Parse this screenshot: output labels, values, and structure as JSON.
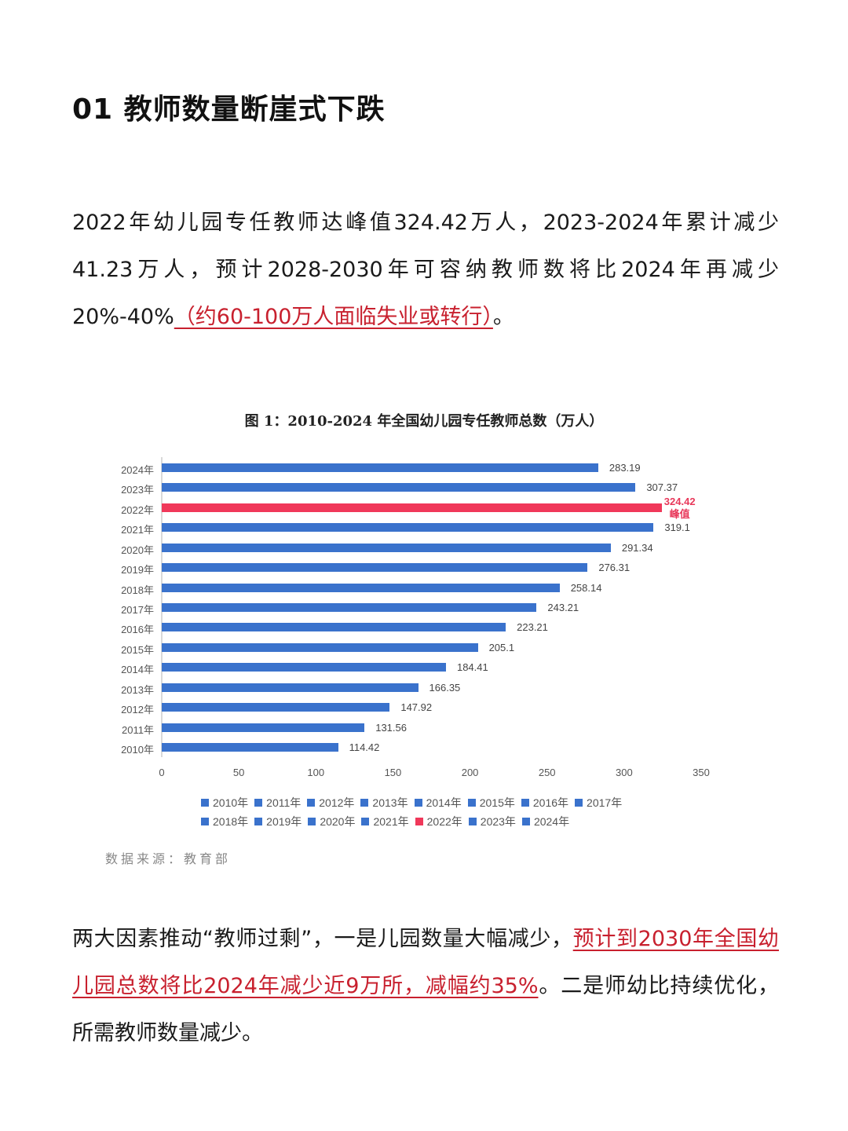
{
  "heading": "01 教师数量断崖式下跌",
  "paragraph1": {
    "text": "2022年幼儿园专任教师达峰值324.42万人，2023-2024年累计减少41.23万人，预计2028-2030年可容纳教师数将比2024年再减少20%-40%",
    "highlight": "（约60-100万人面临失业或转行）",
    "tail": "。"
  },
  "paragraph2": {
    "text": "两大因素推动“教师过剩”，一是儿园数量大幅减少，",
    "highlight": "预计到2030年全国幼儿园总数将比2024年减少近9万所，减幅约35%",
    "tail": "。二是师幼比持续优化，所需教师数量减少。"
  },
  "colors": {
    "bar": "#3a72cc",
    "peak": "#f0385a",
    "highlight_text": "#c8202e"
  },
  "source": "数据来源：教育部",
  "chart_data": {
    "type": "bar",
    "orientation": "horizontal",
    "title": "图 1：2010-2024 年全国幼儿园专任教师总数（万人）",
    "xlabel": "",
    "ylabel": "",
    "xlim": [
      0,
      350
    ],
    "xticks": [
      0,
      50,
      100,
      150,
      200,
      250,
      300,
      350
    ],
    "grid": false,
    "legend_position": "bottom",
    "categories": [
      "2024年",
      "2023年",
      "2022年",
      "2021年",
      "2020年",
      "2019年",
      "2018年",
      "2017年",
      "2016年",
      "2015年",
      "2014年",
      "2013年",
      "2012年",
      "2011年",
      "2010年"
    ],
    "values": [
      283.19,
      307.37,
      324.42,
      319.1,
      291.34,
      276.31,
      258.14,
      243.21,
      223.21,
      205.1,
      184.41,
      166.35,
      147.92,
      131.56,
      114.42
    ],
    "labels": [
      "283.19",
      "307.37",
      "324.42",
      "319.1",
      "291.34",
      "276.31",
      "258.14",
      "243.21",
      "223.21",
      "205.1",
      "184.41",
      "166.35",
      "147.92",
      "131.56",
      "114.42"
    ],
    "highlight_index": 2,
    "annotation": "峰值",
    "legend": [
      [
        "2010年",
        "2011年",
        "2012年",
        "2013年",
        "2014年",
        "2015年",
        "2016年",
        "2017年"
      ],
      [
        "2018年",
        "2019年",
        "2020年",
        "2021年",
        "2022年",
        "2023年",
        "2024年"
      ]
    ]
  }
}
